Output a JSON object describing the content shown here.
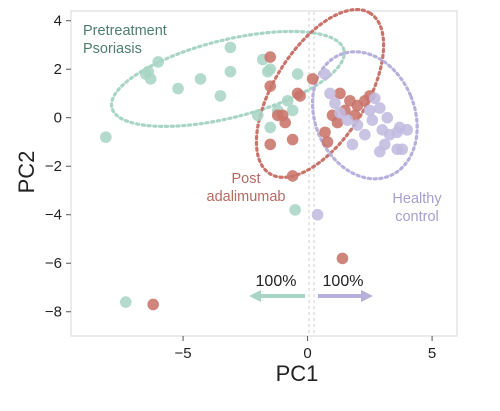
{
  "chart_data": {
    "type": "scatter",
    "xlabel": "PC1",
    "ylabel": "PC2",
    "xlim": [
      -9.5,
      6
    ],
    "ylim": [
      -9,
      4.4
    ],
    "x_ticks": [
      -5,
      0,
      5
    ],
    "y_ticks": [
      -8,
      -6,
      -4,
      -2,
      0,
      2,
      4
    ],
    "x_tick_labels": [
      "−5",
      "0",
      "5"
    ],
    "y_tick_labels": [
      "−8",
      "−6",
      "−4",
      "−2",
      "0",
      "2",
      "4"
    ],
    "grid": false,
    "series": [
      {
        "key": "psoriasis",
        "label_lines": [
          "Pretreatment",
          "Psoriasis"
        ],
        "color": "#a8d5c5",
        "ellipse_color": "#a8d5c5",
        "ellipse": {
          "cx": -3.2,
          "cy": 1.6,
          "rx": 4.8,
          "ry": 1.6,
          "angle_deg": -14
        },
        "points": [
          [
            -8.1,
            -0.8
          ],
          [
            -6.5,
            1.8
          ],
          [
            -6.4,
            1.9
          ],
          [
            -6.3,
            1.6
          ],
          [
            -6.0,
            2.3
          ],
          [
            -5.2,
            1.2
          ],
          [
            -4.3,
            1.6
          ],
          [
            -3.5,
            0.9
          ],
          [
            -3.1,
            2.9
          ],
          [
            -3.1,
            1.9
          ],
          [
            -1.8,
            2.4
          ],
          [
            -1.6,
            1.9
          ],
          [
            -2.0,
            0.1
          ],
          [
            -1.5,
            -0.4
          ],
          [
            -1.2,
            0.3
          ],
          [
            -0.8,
            0.7
          ],
          [
            -1.5,
            2.0
          ],
          [
            -0.4,
            1.8
          ],
          [
            -0.6,
            0.3
          ],
          [
            -7.3,
            -7.6
          ],
          [
            -0.5,
            -3.8
          ]
        ]
      },
      {
        "key": "adalimumab",
        "label_lines": [
          "Post",
          "adalimumab"
        ],
        "color": "#c9746a",
        "ellipse_color": "#c9746a",
        "ellipse": {
          "cx": 0.5,
          "cy": 1.0,
          "rx": 3.8,
          "ry": 1.9,
          "angle_deg": -58
        },
        "points": [
          [
            -6.2,
            -7.7
          ],
          [
            -1.5,
            2.5
          ],
          [
            -1.5,
            1.3
          ],
          [
            -1.2,
            0.1
          ],
          [
            -1.0,
            0.1
          ],
          [
            -0.9,
            -0.2
          ],
          [
            -1.5,
            -1.1
          ],
          [
            -0.6,
            -0.9
          ],
          [
            -0.6,
            -2.4
          ],
          [
            -0.4,
            1.0
          ],
          [
            -0.3,
            0.9
          ],
          [
            0.2,
            1.6
          ],
          [
            0.7,
            -0.6
          ],
          [
            0.8,
            -1.0
          ],
          [
            1.0,
            0.1
          ],
          [
            1.2,
            -0.2
          ],
          [
            1.3,
            1.0
          ],
          [
            1.5,
            0.3
          ],
          [
            1.7,
            0.7
          ],
          [
            1.9,
            0.1
          ],
          [
            2.0,
            0.5
          ],
          [
            2.3,
            0.7
          ],
          [
            2.5,
            0.9
          ],
          [
            1.4,
            -5.8
          ]
        ]
      },
      {
        "key": "healthy",
        "label_lines": [
          "Healthy",
          "control"
        ],
        "color": "#c2bbe0",
        "ellipse_color": "#b8b0dc",
        "ellipse": {
          "cx": 2.3,
          "cy": 0.1,
          "rx": 2.0,
          "ry": 2.7,
          "angle_deg": -22
        },
        "points": [
          [
            0.7,
            1.8
          ],
          [
            0.9,
            1.0
          ],
          [
            1.1,
            0.6
          ],
          [
            1.3,
            0.2
          ],
          [
            1.6,
            -0.1
          ],
          [
            1.8,
            -1.1
          ],
          [
            2.0,
            -0.3
          ],
          [
            2.3,
            -0.7
          ],
          [
            2.5,
            0.3
          ],
          [
            2.7,
            0.8
          ],
          [
            2.9,
            0.4
          ],
          [
            2.9,
            -1.4
          ],
          [
            3.0,
            -0.5
          ],
          [
            3.1,
            -1.1
          ],
          [
            3.3,
            -0.7
          ],
          [
            3.6,
            -0.6
          ],
          [
            3.6,
            -1.3
          ],
          [
            3.7,
            -0.4
          ],
          [
            3.8,
            -1.3
          ],
          [
            4.0,
            -0.5
          ],
          [
            2.6,
            -0.1
          ],
          [
            3.2,
            0.0
          ],
          [
            0.4,
            -4.0
          ]
        ]
      }
    ],
    "shift_arrows": [
      {
        "label": "100%",
        "direction": "left",
        "color": "#a8d5c5"
      },
      {
        "label": "100%",
        "direction": "right",
        "color": "#b8b0dc"
      }
    ]
  }
}
